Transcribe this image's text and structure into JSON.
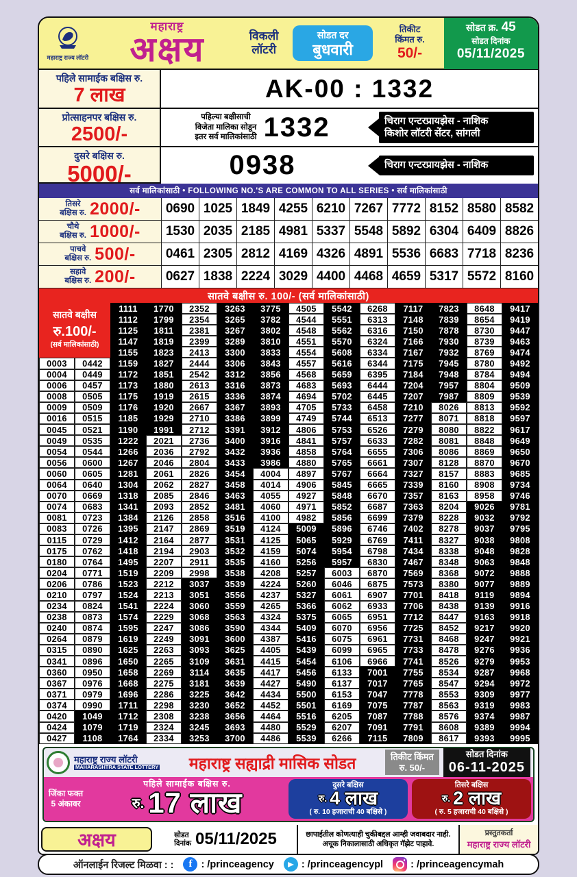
{
  "colors": {
    "accent_magenta": "#c0208f",
    "prize_red": "#e11a1c",
    "bar_purple": "#3c3496",
    "bar_red": "#e8241f",
    "header_yellow": "#f8f295",
    "green_box": "#12994c",
    "badge_blue": "#2aa7e4",
    "promo_pink": "#e2399e"
  },
  "header": {
    "logo_caption": "महाराष्ट्र राज्य लॉटरी",
    "brand_small": "महाराष्ट्र",
    "brand_big": "अक्षय",
    "weekly_line1": "विकली",
    "weekly_line2": "लॉटरी",
    "draw_day_label": "सोडत दर",
    "draw_day": "बुधवारी",
    "ticket_price_label1": "तिकीट",
    "ticket_price_label2": "किंमत रु.",
    "ticket_price": "50/-",
    "draw_no_label": "सोडत क्र.",
    "draw_no": "45",
    "draw_date_label": "सोडत दिनांक",
    "draw_date": "05/11/2025"
  },
  "first_prize": {
    "label": "पहिले सामाईक बक्षिस रु.",
    "amount": "7 लाख",
    "result": "AK-00 : 1332"
  },
  "consolation": {
    "label": "प्रोत्साहनपर बक्षिस रु.",
    "amount": "2500/-",
    "note_line1": "पहिल्या बक्षीसाची",
    "note_line2": "विजेता मालिका सोडून",
    "note_line3": "इतर सर्व मालिकांसाठी",
    "number": "1332",
    "agent_line1": "चिराग एन्टरप्रायझेस - नाशिक",
    "agent_line2": "किशोर लॉटरी सेंटर, सांगली"
  },
  "second_prize": {
    "label": "दुसरे बक्षिस रु.",
    "amount": "5000/-",
    "number": "0938",
    "agent": "चिराग एन्टरप्रायझेस - नाशिक"
  },
  "common_bar": "सर्व मालिकांसाठी  •  FOLLOWING NO.'S ARE COMMON TO ALL SERIES  •  सर्व मालिकांसाठी",
  "mid_prizes": [
    {
      "label_top": "तिसरे",
      "label_bottom": "बक्षिस रु.",
      "amount": "2000/-",
      "numbers": [
        "0690",
        "1025",
        "1849",
        "4255",
        "6210",
        "7267",
        "7772",
        "8152",
        "8580",
        "8582"
      ]
    },
    {
      "label_top": "चौथे",
      "label_bottom": "बक्षिस रु.",
      "amount": "1000/-",
      "numbers": [
        "1530",
        "2035",
        "2185",
        "4981",
        "5337",
        "5548",
        "5892",
        "6304",
        "6409",
        "8826"
      ]
    },
    {
      "label_top": "पाचवे",
      "label_bottom": "बक्षिस रु.",
      "amount": "500/-",
      "numbers": [
        "0461",
        "2305",
        "2812",
        "4169",
        "4326",
        "4891",
        "5536",
        "6683",
        "7718",
        "8236"
      ]
    },
    {
      "label_top": "सहावे",
      "label_bottom": "बक्षिस रु.",
      "amount": "200/-",
      "numbers": [
        "0627",
        "1838",
        "2224",
        "3029",
        "4400",
        "4468",
        "4659",
        "5317",
        "5572",
        "8160"
      ]
    }
  ],
  "seventh": {
    "bar": "सातवे बक्षीस रु. 100/-   (सर्व मालिकांसाठी)",
    "label_line1": "सातवे बक्षीस",
    "label_line2": "रु.100/-",
    "label_line3": "(सर्व मालिकांसाठी)",
    "rows_top": [
      [
        "1111",
        "1770",
        "2352",
        "3263",
        "3775",
        "4505",
        "5542",
        "6268",
        "7117",
        "7823",
        "8648",
        "9417"
      ],
      [
        "1112",
        "1799",
        "2354",
        "3265",
        "3782",
        "4544",
        "5551",
        "6313",
        "7148",
        "7839",
        "8654",
        "9419"
      ],
      [
        "1125",
        "1811",
        "2381",
        "3267",
        "3802",
        "4548",
        "5562",
        "6316",
        "7150",
        "7878",
        "8730",
        "9447"
      ],
      [
        "1147",
        "1819",
        "2399",
        "3289",
        "3810",
        "4551",
        "5570",
        "6324",
        "7166",
        "7930",
        "8739",
        "9463"
      ],
      [
        "1155",
        "1823",
        "2413",
        "3300",
        "3833",
        "4554",
        "5608",
        "6334",
        "7167",
        "7932",
        "8769",
        "9474"
      ]
    ],
    "rows_full": [
      [
        "0003",
        "0442",
        "1159",
        "1827",
        "2444",
        "3306",
        "3843",
        "4557",
        "5616",
        "6344",
        "7175",
        "7945",
        "8780",
        "9492"
      ],
      [
        "0004",
        "0449",
        "1172",
        "1851",
        "2542",
        "3312",
        "3856",
        "4568",
        "5659",
        "6395",
        "7184",
        "7948",
        "8784",
        "9494"
      ],
      [
        "0006",
        "0457",
        "1173",
        "1880",
        "2613",
        "3316",
        "3873",
        "4683",
        "5693",
        "6444",
        "7204",
        "7957",
        "8804",
        "9509"
      ],
      [
        "0008",
        "0505",
        "1175",
        "1919",
        "2615",
        "3336",
        "3874",
        "4694",
        "5702",
        "6445",
        "7207",
        "7987",
        "8809",
        "9539"
      ],
      [
        "0009",
        "0509",
        "1176",
        "1920",
        "2667",
        "3367",
        "3893",
        "4705",
        "5733",
        "6458",
        "7210",
        "8026",
        "8813",
        "9592"
      ],
      [
        "0016",
        "0515",
        "1185",
        "1929",
        "2710",
        "3386",
        "3899",
        "4749",
        "5744",
        "6513",
        "7277",
        "8071",
        "8818",
        "9597"
      ],
      [
        "0045",
        "0521",
        "1190",
        "1991",
        "2712",
        "3391",
        "3912",
        "4806",
        "5753",
        "6526",
        "7279",
        "8080",
        "8822",
        "9617"
      ],
      [
        "0049",
        "0535",
        "1222",
        "2021",
        "2736",
        "3400",
        "3916",
        "4841",
        "5757",
        "6633",
        "7282",
        "8081",
        "8848",
        "9649"
      ],
      [
        "0054",
        "0544",
        "1266",
        "2036",
        "2792",
        "3432",
        "3936",
        "4858",
        "5764",
        "6655",
        "7306",
        "8086",
        "8869",
        "9650"
      ],
      [
        "0056",
        "0600",
        "1267",
        "2046",
        "2804",
        "3433",
        "3986",
        "4880",
        "5765",
        "6661",
        "7307",
        "8128",
        "8870",
        "9670"
      ],
      [
        "0060",
        "0605",
        "1281",
        "2061",
        "2826",
        "3454",
        "4004",
        "4897",
        "5767",
        "6664",
        "7327",
        "8157",
        "8883",
        "9685"
      ],
      [
        "0064",
        "0640",
        "1304",
        "2062",
        "2827",
        "3458",
        "4014",
        "4906",
        "5845",
        "6665",
        "7339",
        "8160",
        "8908",
        "9734"
      ],
      [
        "0070",
        "0669",
        "1318",
        "2085",
        "2846",
        "3463",
        "4055",
        "4927",
        "5848",
        "6670",
        "7357",
        "8163",
        "8958",
        "9746"
      ],
      [
        "0074",
        "0683",
        "1341",
        "2093",
        "2852",
        "3481",
        "4060",
        "4971",
        "5852",
        "6687",
        "7363",
        "8204",
        "9026",
        "9781"
      ],
      [
        "0081",
        "0723",
        "1384",
        "2126",
        "2858",
        "3516",
        "4100",
        "4982",
        "5856",
        "6699",
        "7379",
        "8228",
        "9032",
        "9792"
      ],
      [
        "0083",
        "0726",
        "1395",
        "2147",
        "2869",
        "3519",
        "4124",
        "5009",
        "5896",
        "6746",
        "7402",
        "8278",
        "9037",
        "9795"
      ],
      [
        "0115",
        "0729",
        "1412",
        "2164",
        "2877",
        "3531",
        "4125",
        "5065",
        "5929",
        "6769",
        "7411",
        "8327",
        "9038",
        "9808"
      ],
      [
        "0175",
        "0762",
        "1418",
        "2194",
        "2903",
        "3532",
        "4159",
        "5074",
        "5954",
        "6798",
        "7434",
        "8338",
        "9048",
        "9828"
      ],
      [
        "0180",
        "0764",
        "1495",
        "2207",
        "2911",
        "3535",
        "4160",
        "5256",
        "5957",
        "6830",
        "7467",
        "8348",
        "9063",
        "9848"
      ],
      [
        "0204",
        "0771",
        "1519",
        "2209",
        "2998",
        "3538",
        "4208",
        "5257",
        "6003",
        "6870",
        "7569",
        "8368",
        "9072",
        "9888"
      ],
      [
        "0206",
        "0786",
        "1523",
        "2212",
        "3037",
        "3539",
        "4224",
        "5260",
        "6046",
        "6875",
        "7573",
        "8380",
        "9077",
        "9889"
      ],
      [
        "0210",
        "0797",
        "1524",
        "2213",
        "3051",
        "3556",
        "4237",
        "5327",
        "6061",
        "6907",
        "7701",
        "8418",
        "9119",
        "9894"
      ],
      [
        "0234",
        "0824",
        "1541",
        "2224",
        "3060",
        "3559",
        "4265",
        "5366",
        "6062",
        "6933",
        "7706",
        "8438",
        "9139",
        "9916"
      ],
      [
        "0238",
        "0873",
        "1574",
        "2229",
        "3068",
        "3563",
        "4324",
        "5375",
        "6065",
        "6951",
        "7712",
        "8447",
        "9163",
        "9918"
      ],
      [
        "0240",
        "0874",
        "1595",
        "2247",
        "3086",
        "3590",
        "4344",
        "5409",
        "6070",
        "6956",
        "7725",
        "8452",
        "9217",
        "9920"
      ],
      [
        "0264",
        "0879",
        "1619",
        "2249",
        "3091",
        "3600",
        "4387",
        "5416",
        "6075",
        "6961",
        "7731",
        "8468",
        "9247",
        "9921"
      ],
      [
        "0315",
        "0890",
        "1625",
        "2263",
        "3093",
        "3625",
        "4405",
        "5439",
        "6099",
        "6965",
        "7733",
        "8478",
        "9276",
        "9936"
      ],
      [
        "0341",
        "0896",
        "1650",
        "2265",
        "3109",
        "3631",
        "4415",
        "5454",
        "6106",
        "6966",
        "7741",
        "8526",
        "9279",
        "9953"
      ],
      [
        "0360",
        "0950",
        "1658",
        "2269",
        "3114",
        "3635",
        "4417",
        "5456",
        "6133",
        "7001",
        "7755",
        "8534",
        "9287",
        "9968"
      ],
      [
        "0367",
        "0976",
        "1668",
        "2275",
        "3181",
        "3639",
        "4427",
        "5490",
        "6137",
        "7017",
        "7765",
        "8547",
        "9294",
        "9972"
      ],
      [
        "0371",
        "0979",
        "1696",
        "2286",
        "3225",
        "3642",
        "4434",
        "5500",
        "6153",
        "7047",
        "7778",
        "8553",
        "9309",
        "9977"
      ],
      [
        "0374",
        "0990",
        "1711",
        "2298",
        "3230",
        "3652",
        "4452",
        "5501",
        "6169",
        "7075",
        "7787",
        "8563",
        "9319",
        "9983"
      ],
      [
        "0420",
        "1049",
        "1712",
        "2308",
        "3238",
        "3656",
        "4464",
        "5516",
        "6205",
        "7087",
        "7788",
        "8576",
        "9374",
        "9987"
      ],
      [
        "0424",
        "1079",
        "1719",
        "2324",
        "3245",
        "3693",
        "4480",
        "5529",
        "6207",
        "7091",
        "7791",
        "8608",
        "9389",
        "9994"
      ],
      [
        "0427",
        "1108",
        "1764",
        "2334",
        "3253",
        "3700",
        "4486",
        "5539",
        "6266",
        "7115",
        "7809",
        "8617",
        "9393",
        "9995"
      ]
    ]
  },
  "promo": {
    "org_line1": "महाराष्ट्र राज्य लॉटरी",
    "org_line2": "MAHARASHTRA STATE LOTTERY",
    "title": "महाराष्ट्र सह्याद्री मासिक सोडत",
    "price_label": "तिकीट किंमत",
    "price": "रु. 50/-",
    "date_label": "सोडत दिनांक",
    "date": "06-11-2025",
    "win_note_line1": "जिंका फक्त",
    "win_note_line2": "5 अंकावर",
    "first_label": "पहिले सामाईक बक्षिस रु.",
    "first_cur": "रु.",
    "first_amount": "17 लाख",
    "second_label": "दुसरे बक्षिस",
    "second_cur": "रु.",
    "second_amount": "4 लाख",
    "second_note": "( रु. 10 हजाराची 40 बक्षिसे )",
    "third_label": "तिसरे बक्षिस",
    "third_cur": "रु.",
    "third_amount": "2 लाख",
    "third_note": "( रु. 5 हजाराची 40 बक्षिसे )"
  },
  "bottom_strip": {
    "brand": "अक्षय",
    "date_label_1": "सोडत",
    "date_label_2": "दिनांक",
    "date": "05/11/2025",
    "disclaimer_line1": "छापाईतील कोणत्याही चुकीबद्दल आम्ही जवाबदार नाही.",
    "disclaimer_line2": "अचूक निकालासाठी अधिकृत गॅझेट पाहावे.",
    "presenter_label": "प्रस्तुतकर्ता",
    "presenter": "महाराष्ट्र राज्य लॉटरी"
  },
  "footer": {
    "label": "ऑनलाईन रिजल्ट मिळवा : :",
    "facebook_handle": ": /princeagency",
    "telegram_handle": ": /princeagencypl",
    "instagram_handle": ": /princeagencymah"
  }
}
